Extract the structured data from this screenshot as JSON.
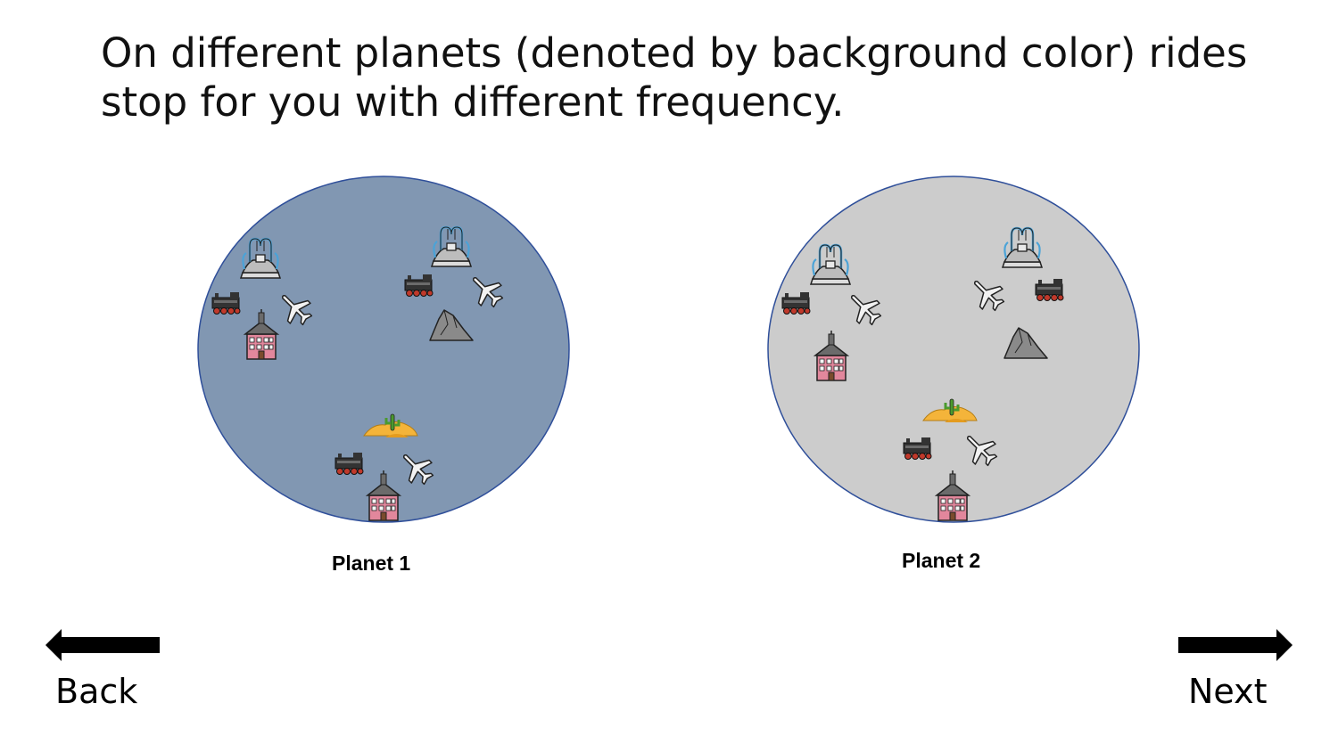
{
  "title": {
    "line1": "On different planets (denoted by background color) rides",
    "line2": "stop for you with different frequency."
  },
  "planets": [
    {
      "label": "Planet 1",
      "fill": "#8197b2",
      "icons": [
        "fountain-icon",
        "fountain-icon",
        "train-icon",
        "train-icon",
        "train-icon",
        "airplane-icon",
        "airplane-icon",
        "airplane-icon",
        "building-icon",
        "building-icon",
        "mountain-icon",
        "desert-icon"
      ]
    },
    {
      "label": "Planet 2",
      "fill": "#cccccc",
      "icons": [
        "fountain-icon",
        "fountain-icon",
        "train-icon",
        "train-icon",
        "train-icon",
        "airplane-icon",
        "airplane-icon",
        "airplane-icon",
        "building-icon",
        "building-icon",
        "mountain-icon",
        "desert-icon"
      ]
    }
  ],
  "nav": {
    "back_label": "Back",
    "next_label": "Next",
    "back_icon": "left-arrow-icon",
    "next_icon": "right-arrow-icon"
  },
  "colors": {
    "outline": "#2f4f9a",
    "building": "#e2879c",
    "train": "#333333",
    "train_wheels": "#c0392b",
    "sand": "#f4b43a",
    "cactus": "#4a9a2e",
    "rock": "#8a8a8a"
  }
}
